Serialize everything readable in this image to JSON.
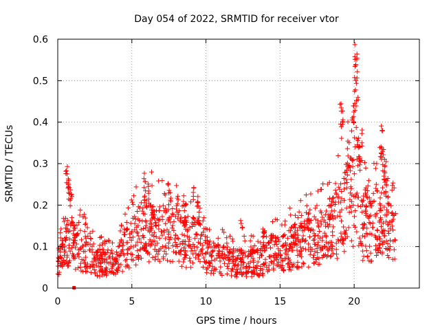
{
  "chart_data": {
    "type": "scatter",
    "title": "Day 054 of 2022, SRMTID for receiver vtor",
    "xlabel": "GPS time / hours",
    "ylabel": "SRMTID / TECUs",
    "xlim": [
      0,
      24.4
    ],
    "ylim": [
      0,
      0.6
    ],
    "xticks": [
      0,
      5,
      10,
      15,
      20
    ],
    "yticks": [
      0,
      0.1,
      0.2,
      0.3,
      0.4,
      0.5,
      0.6
    ],
    "xtick_labels": [
      "0",
      "5",
      "10",
      "15",
      "20"
    ],
    "ytick_labels": [
      "0",
      "0.1",
      "0.2",
      "0.3",
      "0.4",
      "0.5",
      "0.6"
    ],
    "grid": true,
    "marker": "+",
    "color": "#ff0000",
    "series": [
      {
        "name": "SRMTID",
        "trend": [
          [
            0.0,
            0.06
          ],
          [
            0.3,
            0.08
          ],
          [
            0.6,
            0.1
          ],
          [
            0.8,
            0.13
          ],
          [
            1.0,
            0.1
          ],
          [
            1.3,
            0.09
          ],
          [
            1.6,
            0.09
          ],
          [
            2.0,
            0.08
          ],
          [
            2.5,
            0.06
          ],
          [
            3.0,
            0.06
          ],
          [
            3.5,
            0.06
          ],
          [
            4.0,
            0.06
          ],
          [
            4.5,
            0.09
          ],
          [
            5.0,
            0.11
          ],
          [
            5.5,
            0.13
          ],
          [
            6.0,
            0.14
          ],
          [
            6.5,
            0.14
          ],
          [
            7.0,
            0.13
          ],
          [
            7.5,
            0.13
          ],
          [
            8.0,
            0.12
          ],
          [
            8.5,
            0.11
          ],
          [
            9.0,
            0.11
          ],
          [
            9.5,
            0.11
          ],
          [
            10.0,
            0.08
          ],
          [
            10.5,
            0.07
          ],
          [
            11.0,
            0.07
          ],
          [
            11.5,
            0.06
          ],
          [
            12.0,
            0.06
          ],
          [
            12.5,
            0.06
          ],
          [
            13.0,
            0.06
          ],
          [
            13.5,
            0.06
          ],
          [
            14.0,
            0.07
          ],
          [
            14.5,
            0.08
          ],
          [
            15.0,
            0.08
          ],
          [
            15.5,
            0.09
          ],
          [
            16.0,
            0.1
          ],
          [
            16.5,
            0.11
          ],
          [
            17.0,
            0.11
          ],
          [
            17.5,
            0.12
          ],
          [
            18.0,
            0.12
          ],
          [
            18.5,
            0.14
          ],
          [
            19.0,
            0.16
          ],
          [
            19.5,
            0.19
          ],
          [
            19.9,
            0.22
          ],
          [
            20.2,
            0.2
          ],
          [
            20.5,
            0.15
          ],
          [
            21.0,
            0.14
          ],
          [
            21.5,
            0.15
          ],
          [
            22.0,
            0.16
          ],
          [
            22.5,
            0.13
          ],
          [
            22.8,
            0.12
          ]
        ],
        "spikes": [
          [
            0.6,
            0.29
          ],
          [
            0.65,
            0.28
          ],
          [
            0.75,
            0.26
          ],
          [
            0.8,
            0.25
          ],
          [
            0.9,
            0.22
          ],
          [
            1.0,
            0.17
          ],
          [
            5.8,
            0.22
          ],
          [
            6.1,
            0.25
          ],
          [
            6.4,
            0.2
          ],
          [
            7.5,
            0.25
          ],
          [
            7.6,
            0.23
          ],
          [
            8.1,
            0.22
          ],
          [
            8.6,
            0.2
          ],
          [
            9.2,
            0.24
          ],
          [
            9.4,
            0.21
          ],
          [
            12.4,
            0.16
          ],
          [
            13.9,
            0.14
          ],
          [
            16.9,
            0.18
          ],
          [
            18.4,
            0.22
          ],
          [
            18.8,
            0.25
          ],
          [
            19.1,
            0.45
          ],
          [
            19.15,
            0.42
          ],
          [
            19.2,
            0.4
          ],
          [
            19.5,
            0.3
          ],
          [
            19.6,
            0.35
          ],
          [
            19.9,
            0.41
          ],
          [
            19.95,
            0.44
          ],
          [
            20.0,
            0.46
          ],
          [
            20.05,
            0.52
          ],
          [
            20.1,
            0.58
          ],
          [
            20.12,
            0.57
          ],
          [
            20.15,
            0.53
          ],
          [
            20.2,
            0.47
          ],
          [
            20.25,
            0.37
          ],
          [
            20.3,
            0.35
          ],
          [
            20.4,
            0.31
          ],
          [
            20.5,
            0.38
          ],
          [
            20.8,
            0.25
          ],
          [
            21.1,
            0.22
          ],
          [
            21.5,
            0.25
          ],
          [
            21.8,
            0.35
          ],
          [
            21.85,
            0.4
          ],
          [
            21.9,
            0.33
          ],
          [
            22.0,
            0.28
          ],
          [
            22.1,
            0.3
          ],
          [
            22.2,
            0.26
          ]
        ],
        "point_count": 1350,
        "isolated_point": [
          1.1,
          0.0
        ]
      }
    ]
  }
}
